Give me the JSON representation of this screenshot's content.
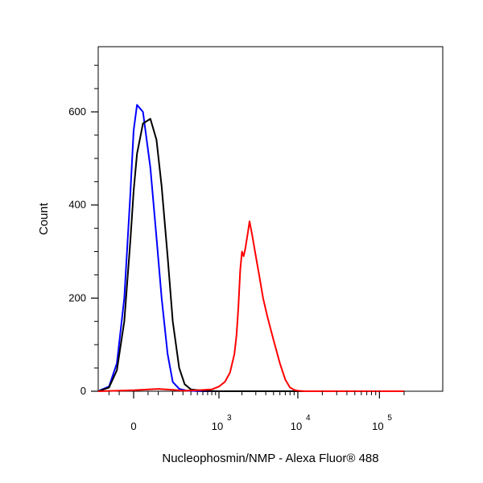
{
  "chart_data": {
    "type": "line",
    "title": "",
    "xlabel": "Nucleophosmin/NMP - Alexa Fluor® 488",
    "ylabel": "Count",
    "x_scale": "biexponential",
    "x_ticks": [
      {
        "value": 0,
        "label": "0",
        "exponent": ""
      },
      {
        "value": 1000,
        "label": "10",
        "exponent": "3"
      },
      {
        "value": 10000,
        "label": "10",
        "exponent": "4"
      },
      {
        "value": 100000,
        "label": "10",
        "exponent": "5"
      }
    ],
    "y_ticks": [
      {
        "value": 0,
        "label": "0"
      },
      {
        "value": 200,
        "label": "200"
      },
      {
        "value": 400,
        "label": "400"
      },
      {
        "value": 600,
        "label": "600"
      }
    ],
    "ylim": [
      0,
      740
    ],
    "grid": false,
    "legend": "none",
    "series": [
      {
        "color": "#0000ff",
        "x": [
          -300,
          -150,
          -100,
          -60,
          -30,
          -10,
          0,
          10,
          30,
          60,
          90,
          120,
          160,
          200,
          260,
          350,
          600,
          1000,
          3000,
          10000,
          100000,
          200000
        ],
        "y": [
          0,
          3,
          10,
          60,
          200,
          420,
          560,
          615,
          600,
          480,
          330,
          200,
          80,
          20,
          5,
          1,
          0,
          0,
          0,
          0,
          0,
          0
        ]
      },
      {
        "color": "#000000",
        "x": [
          -300,
          -150,
          -100,
          -60,
          -30,
          -10,
          0,
          10,
          30,
          60,
          90,
          120,
          160,
          200,
          260,
          320,
          400,
          600,
          1000,
          3000,
          10000,
          100000,
          200000
        ],
        "y": [
          0,
          2,
          8,
          45,
          150,
          320,
          430,
          510,
          575,
          585,
          540,
          440,
          290,
          150,
          50,
          15,
          4,
          1,
          0,
          0,
          0,
          0,
          0
        ]
      },
      {
        "color": "#ff0000",
        "x": [
          -300,
          0,
          100,
          200,
          300,
          500,
          800,
          1000,
          1200,
          1400,
          1600,
          1700,
          1800,
          1900,
          2000,
          2100,
          2200,
          2400,
          2500,
          2700,
          3000,
          3300,
          3700,
          4200,
          5000,
          6000,
          7000,
          8000,
          9000,
          10000,
          12000,
          20000,
          100000,
          200000
        ],
        "y": [
          0,
          2,
          5,
          3,
          1,
          2,
          4,
          10,
          20,
          40,
          80,
          120,
          180,
          260,
          300,
          290,
          305,
          345,
          365,
          335,
          290,
          250,
          200,
          160,
          110,
          60,
          25,
          8,
          3,
          1,
          0,
          0,
          0,
          0
        ]
      }
    ]
  }
}
